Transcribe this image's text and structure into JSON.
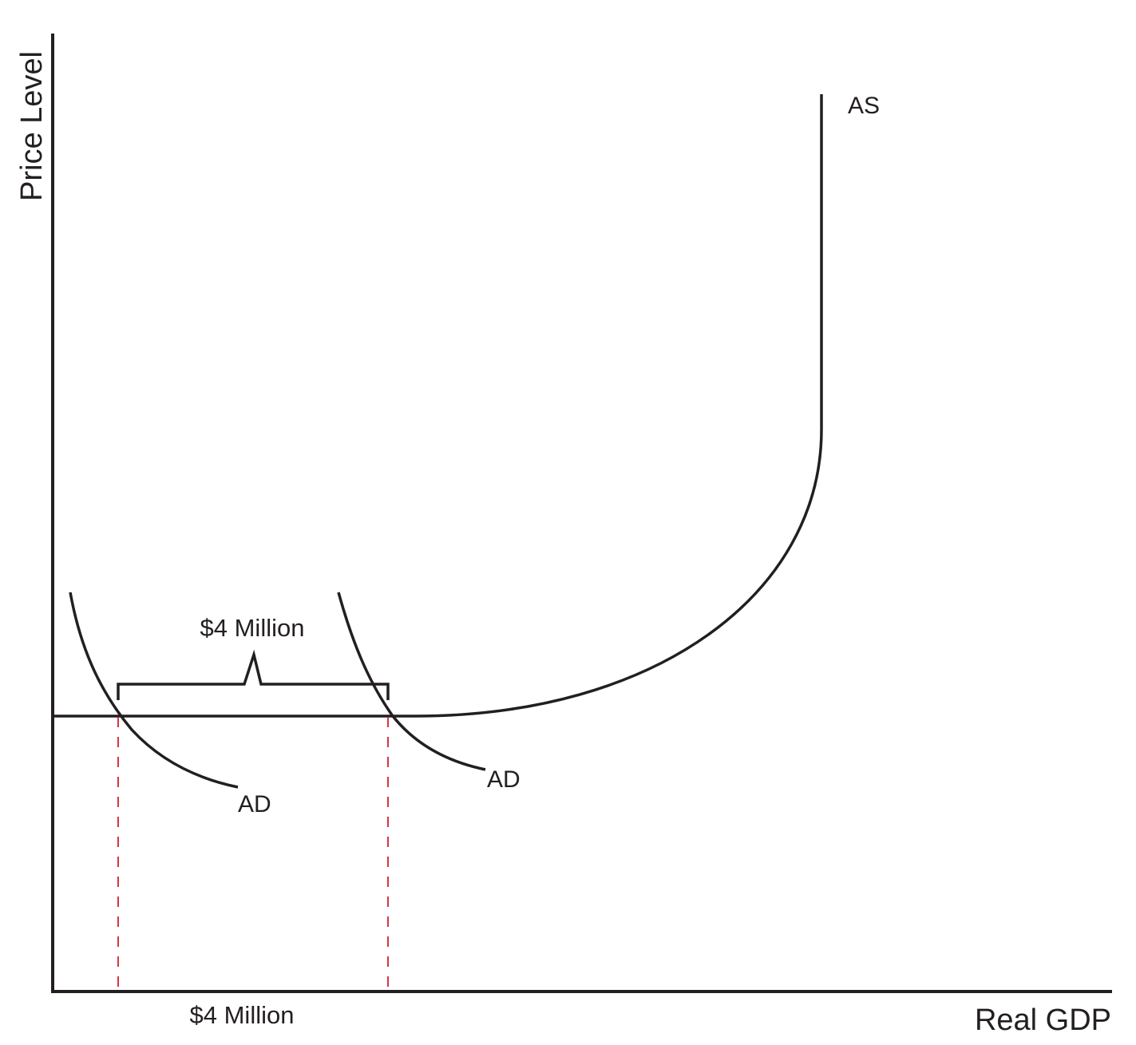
{
  "diagram": {
    "axes": {
      "y_label": "Price Level",
      "x_label": "Real GDP"
    },
    "curves": {
      "as_label": "AS",
      "ad_left_label": "AD",
      "ad_right_label": "AD"
    },
    "annotations": {
      "bracket_label": "$4 Million",
      "x_gap_label": "$4 Million"
    },
    "colors": {
      "line": "#231f20",
      "guide_dashed": "#d0202e"
    }
  }
}
